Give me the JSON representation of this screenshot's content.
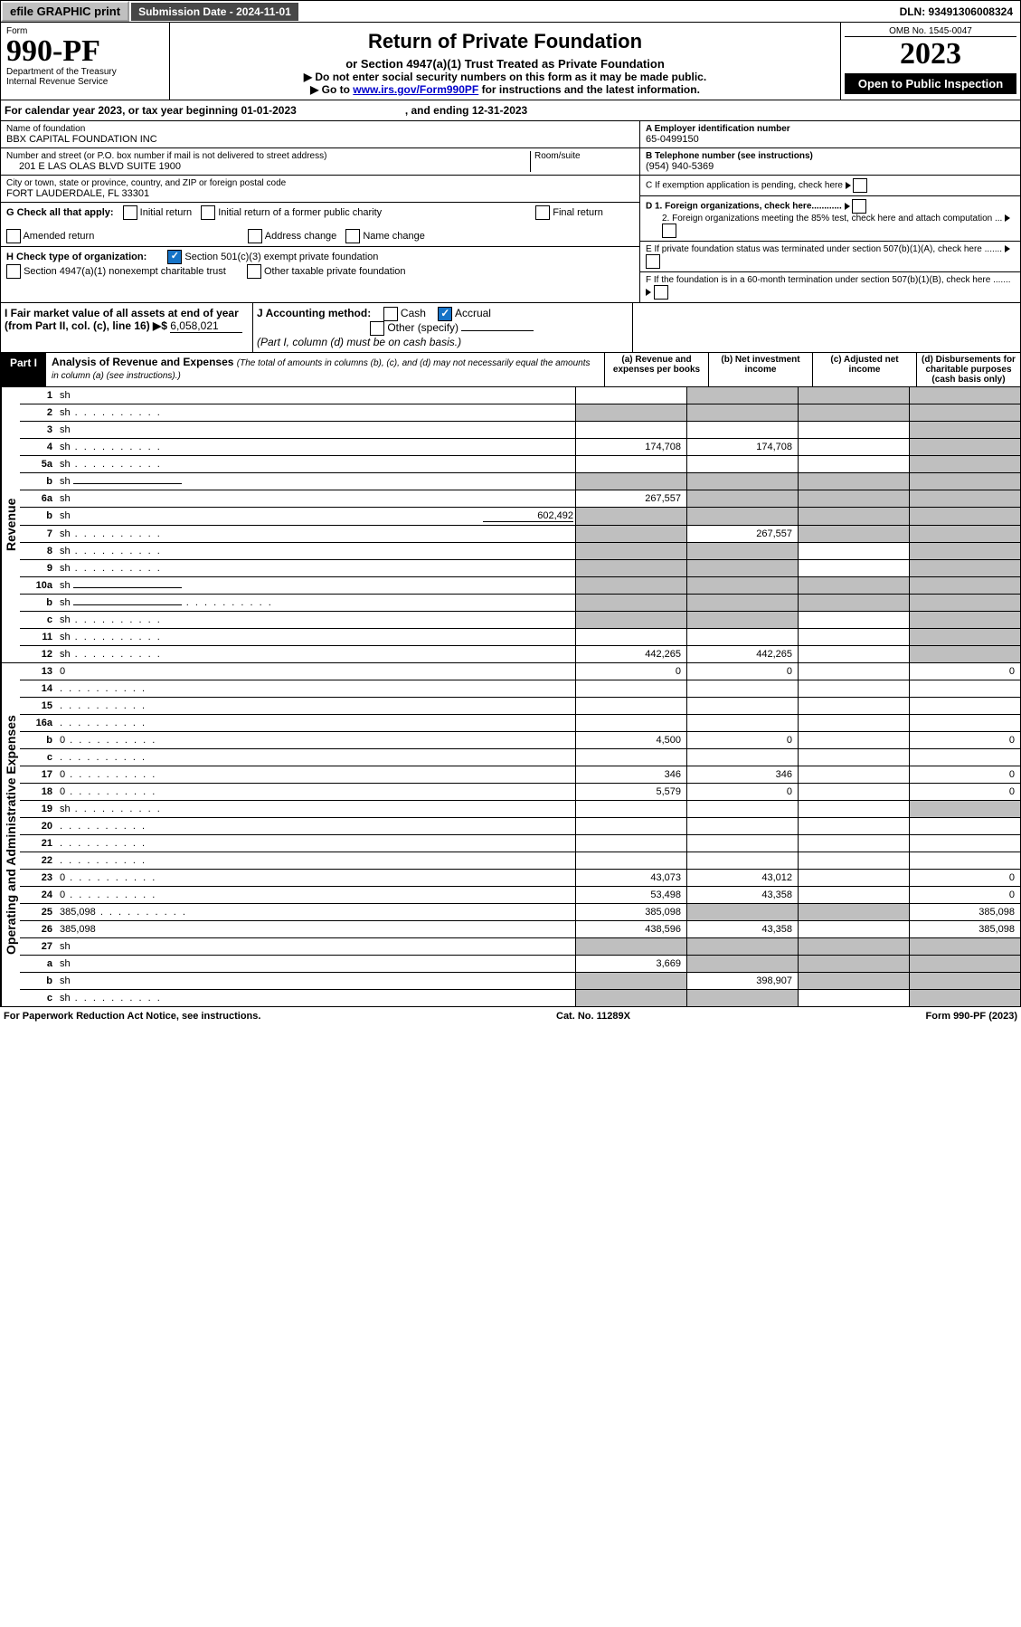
{
  "topbar": {
    "efile": "efile GRAPHIC print",
    "subdate_label": "Submission Date - 2024-11-01",
    "dln": "DLN: 93491306008324"
  },
  "header": {
    "form": "Form",
    "num": "990-PF",
    "dept": "Department of the Treasury",
    "irs": "Internal Revenue Service",
    "title": "Return of Private Foundation",
    "subtitle": "or Section 4947(a)(1) Trust Treated as Private Foundation",
    "note1": "▶ Do not enter social security numbers on this form as it may be made public.",
    "note2": "▶ Go to",
    "link": "www.irs.gov/Form990PF",
    "note2b": " for instructions and the latest information.",
    "omb": "OMB No. 1545-0047",
    "year": "2023",
    "open": "Open to Public Inspection"
  },
  "cal": {
    "label": "For calendar year 2023, or tax year beginning 01-01-2023",
    "and": ", and ending 12-31-2023"
  },
  "id": {
    "name_label": "Name of foundation",
    "name": "BBX CAPITAL FOUNDATION INC",
    "addr_label": "Number and street (or P.O. box number if mail is not delivered to street address)",
    "room": "Room/suite",
    "addr": "201 E LAS OLAS BLVD SUITE 1900",
    "city_label": "City or town, state or province, country, and ZIP or foreign postal code",
    "city": "FORT LAUDERDALE, FL  33301",
    "A": "A Employer identification number",
    "A_val": "65-0499150",
    "B": "B Telephone number (see instructions)",
    "B_val": "(954) 940-5369",
    "C": "C If exemption application is pending, check here",
    "D1": "D 1. Foreign organizations, check here............",
    "D2": "2. Foreign organizations meeting the 85% test, check here and attach computation ...",
    "E": "E  If private foundation status was terminated under section 507(b)(1)(A), check here .......",
    "F": "F  If the foundation is in a 60-month termination under section 507(b)(1)(B), check here .......",
    "G": "G Check all that apply:",
    "G_items": [
      "Initial return",
      "Initial return of a former public charity",
      "Final return",
      "Amended return",
      "Address change",
      "Name change"
    ],
    "H": "H Check type of organization:",
    "H1": "Section 501(c)(3) exempt private foundation",
    "H2": "Section 4947(a)(1) nonexempt charitable trust",
    "H3": "Other taxable private foundation",
    "I": "I Fair market value of all assets at end of year (from Part II, col. (c), line 16) ▶$",
    "I_val": "6,058,021",
    "J": "J Accounting method:",
    "J1": "Cash",
    "J2": "Accrual",
    "J3": "Other (specify)",
    "J_note": "(Part I, column (d) must be on cash basis.)"
  },
  "part1": {
    "label": "Part I",
    "title": "Analysis of Revenue and Expenses",
    "note": "(The total of amounts in columns (b), (c), and (d) may not necessarily equal the amounts in column (a) (see instructions).)",
    "cols": {
      "a": "(a) Revenue and expenses per books",
      "b": "(b) Net investment income",
      "c": "(c) Adjusted net income",
      "d": "(d) Disbursements for charitable purposes (cash basis only)"
    }
  },
  "sections": {
    "rev": "Revenue",
    "exp": "Operating and Administrative Expenses"
  },
  "rows": [
    {
      "n": "1",
      "d": "sh",
      "a": "",
      "b": "sh",
      "c": "sh"
    },
    {
      "n": "2",
      "d": "sh",
      "a": "sh",
      "b": "sh",
      "c": "sh",
      "dots": true
    },
    {
      "n": "3",
      "d": "sh",
      "a": "",
      "b": "",
      "c": ""
    },
    {
      "n": "4",
      "d": "sh",
      "a": "174,708",
      "b": "174,708",
      "c": "",
      "dots": true
    },
    {
      "n": "5a",
      "d": "sh",
      "a": "",
      "b": "",
      "c": "",
      "dots": true
    },
    {
      "n": "b",
      "d": "sh",
      "a": "sh",
      "b": "sh",
      "c": "sh",
      "inline": true
    },
    {
      "n": "6a",
      "d": "sh",
      "a": "267,557",
      "b": "sh",
      "c": "sh"
    },
    {
      "n": "b",
      "d": "sh",
      "inline_val": "602,492",
      "a": "sh",
      "b": "sh",
      "c": "sh"
    },
    {
      "n": "7",
      "d": "sh",
      "a": "sh",
      "b": "267,557",
      "c": "sh",
      "dots": true
    },
    {
      "n": "8",
      "d": "sh",
      "a": "sh",
      "b": "sh",
      "c": "",
      "dots": true
    },
    {
      "n": "9",
      "d": "sh",
      "a": "sh",
      "b": "sh",
      "c": "",
      "dots": true
    },
    {
      "n": "10a",
      "d": "sh",
      "a": "sh",
      "b": "sh",
      "c": "sh",
      "inline": true
    },
    {
      "n": "b",
      "d": "sh",
      "a": "sh",
      "b": "sh",
      "c": "sh",
      "inline": true,
      "dots": true
    },
    {
      "n": "c",
      "d": "sh",
      "a": "sh",
      "b": "sh",
      "c": "",
      "dots": true
    },
    {
      "n": "11",
      "d": "sh",
      "a": "",
      "b": "",
      "c": "",
      "dots": true
    },
    {
      "n": "12",
      "d": "sh",
      "a": "442,265",
      "b": "442,265",
      "c": "",
      "dots": true
    }
  ],
  "exprows": [
    {
      "n": "13",
      "d": "0",
      "a": "0",
      "b": "0",
      "c": ""
    },
    {
      "n": "14",
      "d": "",
      "a": "",
      "b": "",
      "c": "",
      "dots": true
    },
    {
      "n": "15",
      "d": "",
      "a": "",
      "b": "",
      "c": "",
      "dots": true
    },
    {
      "n": "16a",
      "d": "",
      "a": "",
      "b": "",
      "c": "",
      "dots": true
    },
    {
      "n": "b",
      "d": "0",
      "a": "4,500",
      "b": "0",
      "c": "",
      "dots": true
    },
    {
      "n": "c",
      "d": "",
      "a": "",
      "b": "",
      "c": "",
      "dots": true
    },
    {
      "n": "17",
      "d": "0",
      "a": "346",
      "b": "346",
      "c": "",
      "dots": true
    },
    {
      "n": "18",
      "d": "0",
      "a": "5,579",
      "b": "0",
      "c": "",
      "dots": true
    },
    {
      "n": "19",
      "d": "sh",
      "a": "",
      "b": "",
      "c": "",
      "dots": true
    },
    {
      "n": "20",
      "d": "",
      "a": "",
      "b": "",
      "c": "",
      "dots": true
    },
    {
      "n": "21",
      "d": "",
      "a": "",
      "b": "",
      "c": "",
      "dots": true
    },
    {
      "n": "22",
      "d": "",
      "a": "",
      "b": "",
      "c": "",
      "dots": true
    },
    {
      "n": "23",
      "d": "0",
      "a": "43,073",
      "b": "43,012",
      "c": "",
      "dots": true
    },
    {
      "n": "24",
      "d": "0",
      "a": "53,498",
      "b": "43,358",
      "c": "",
      "dots": true
    },
    {
      "n": "25",
      "d": "385,098",
      "a": "385,098",
      "b": "sh",
      "c": "sh",
      "dots": true
    },
    {
      "n": "26",
      "d": "385,098",
      "a": "438,596",
      "b": "43,358",
      "c": ""
    },
    {
      "n": "27",
      "d": "sh",
      "a": "sh",
      "b": "sh",
      "c": "sh"
    },
    {
      "n": "a",
      "d": "sh",
      "a": "3,669",
      "b": "sh",
      "c": "sh"
    },
    {
      "n": "b",
      "d": "sh",
      "a": "sh",
      "b": "398,907",
      "c": "sh"
    },
    {
      "n": "c",
      "d": "sh",
      "a": "sh",
      "b": "sh",
      "c": "",
      "dots": true
    }
  ],
  "footer": {
    "l": "For Paperwork Reduction Act Notice, see instructions.",
    "c": "Cat. No. 11289X",
    "r": "Form 990-PF (2023)"
  }
}
